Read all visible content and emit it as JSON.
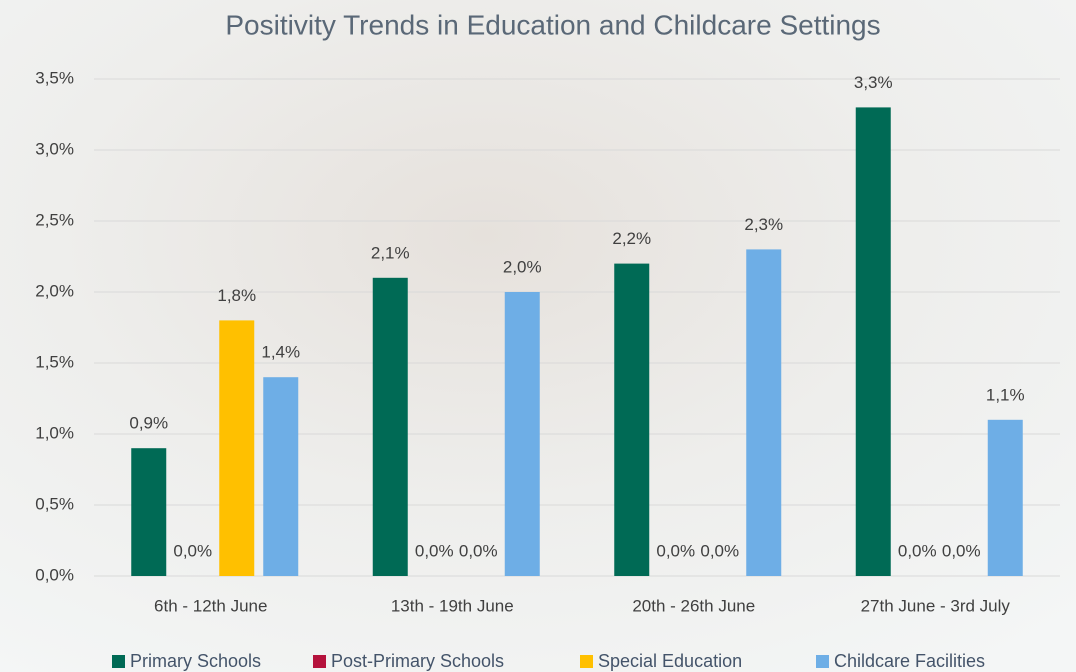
{
  "chart_data": {
    "type": "bar",
    "title": "Positivity Trends in Education and Childcare Settings",
    "categories": [
      "6th - 12th June",
      "13th - 19th June",
      "20th - 26th June",
      "27th June - 3rd July"
    ],
    "series": [
      {
        "name": "Primary Schools",
        "color": "#006a55",
        "values": [
          0.9,
          2.1,
          2.2,
          3.3
        ],
        "value_labels": [
          "0,9%",
          "2,1%",
          "2,2%",
          "3,3%"
        ]
      },
      {
        "name": "Post-Primary Schools",
        "color": "#b5123c",
        "values": [
          0,
          0,
          0,
          0
        ],
        "value_labels": [
          "0,0%",
          "0,0%",
          "0,0%",
          "0,0%"
        ]
      },
      {
        "name": "Special Education",
        "color": "#ffc000",
        "values": [
          1.8,
          0,
          0,
          0
        ],
        "value_labels": [
          "1,8%",
          "0,0%",
          "0,0%",
          "0,0%"
        ]
      },
      {
        "name": "Childcare Facilities",
        "color": "#6eaee6",
        "values": [
          1.4,
          2.0,
          2.3,
          1.1
        ],
        "value_labels": [
          "1,4%",
          "2,0%",
          "2,3%",
          "1,1%"
        ]
      }
    ],
    "ylim": [
      0,
      3.5
    ],
    "yticks": [
      {
        "value": 0,
        "label": "0,0%"
      },
      {
        "value": 0.5,
        "label": "0,5%"
      },
      {
        "value": 1,
        "label": "1,0%"
      },
      {
        "value": 1.5,
        "label": "1,5%"
      },
      {
        "value": 2,
        "label": "2,0%"
      },
      {
        "value": 2.5,
        "label": "2,5%"
      },
      {
        "value": 3,
        "label": "3,0%"
      },
      {
        "value": 3.5,
        "label": "3,5%"
      }
    ],
    "grid": true,
    "legend": "bottom"
  }
}
